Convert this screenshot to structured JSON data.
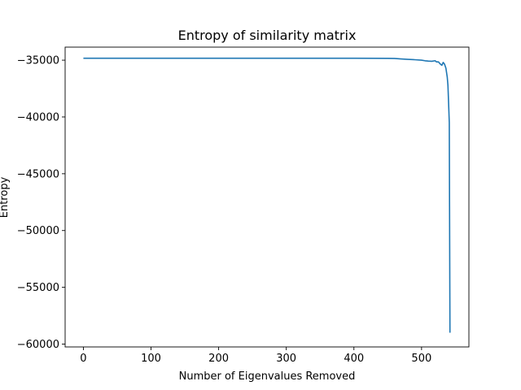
{
  "chart_data": {
    "type": "line",
    "title": "Entropy of similarity matrix",
    "xlabel": "Number of Eigenvalues Removed",
    "ylabel": "Entropy",
    "xlim": [
      -27,
      570
    ],
    "ylim": [
      -60250,
      -33850
    ],
    "x_ticks": [
      0,
      100,
      200,
      300,
      400,
      500
    ],
    "y_ticks": [
      -35000,
      -40000,
      -45000,
      -50000,
      -55000,
      -60000
    ],
    "grid": false,
    "series": [
      {
        "color": "#1f77b4",
        "x": [
          0,
          100,
          200,
          300,
          400,
          450,
          460,
          470,
          480,
          490,
          500,
          505,
          510,
          515,
          520,
          522,
          525,
          527,
          530,
          532,
          534,
          536,
          538,
          539,
          540,
          541,
          542
        ],
        "y": [
          -34830,
          -34830,
          -34830,
          -34830,
          -34830,
          -34840,
          -34850,
          -34890,
          -34930,
          -34960,
          -35000,
          -35050,
          -35080,
          -35100,
          -35050,
          -35150,
          -35150,
          -35300,
          -35450,
          -35200,
          -35350,
          -35700,
          -36500,
          -37200,
          -38800,
          -40500,
          -59000
        ]
      }
    ]
  }
}
